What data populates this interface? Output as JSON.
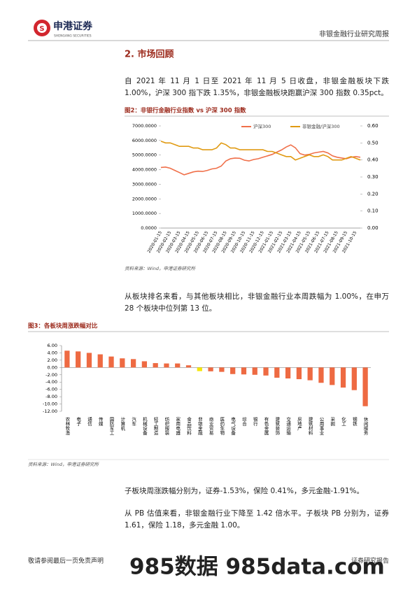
{
  "header": {
    "company": "申港证券",
    "company_en": "SHENGANG SECURITIES",
    "report_type": "非银金融行业研究周报"
  },
  "section_title": "2. 市场回顾",
  "paragraphs": [
    "自 2021 年 11 月 1 日至 2021 年 11 月 5 日收盘，非银金融板块下跌 1.00%，沪深 300 指下跌 1.35%，非银金融板块跑赢沪深 300 指数 0.35pct。",
    "从板块排名来看，与其他板块相比，非银金融行业本周跌幅为 1.00%，在申万 28 个板块中位列第 13 位。",
    "子板块周涨跌幅分别为，证券-1.53%，保险 0.41%，多元金融-1.91%。",
    "从 PB 估值来看，非银金融行业下降至 1.42 倍水平。子板块 PB 分别为，证券 1.61，保险 1.18，多元金融 1.00。"
  ],
  "sources": [
    "资料来源：Wind，申港证券研究所",
    "资料来源：Wind，申港证券研究所"
  ],
  "chart_data": [
    {
      "type": "line",
      "title": "图2：非银行金融行业指数 vs 沪深 300 指数",
      "categories": [
        "2020-01-15",
        null,
        "2020-02-15",
        null,
        "2020-03-15",
        null,
        "2020-04-15",
        null,
        "2020-05-15",
        null,
        "2020-06-15",
        null,
        "2020-07-15",
        null,
        "2020-08-15",
        null,
        "2020-09-15",
        null,
        "2020-10-15",
        null,
        "2020-11-15",
        null,
        "2020-12-15",
        null,
        "2021-01-15",
        null,
        "2021-02-15",
        null,
        "2021-03-15",
        null,
        "2021-04-15",
        null,
        "2021-05-15",
        null,
        "2021-06-15",
        null,
        "2021-07-15",
        null,
        "2021-08-15",
        null,
        "2021-09-15",
        null,
        "2021-10-15",
        null
      ],
      "series": [
        {
          "name": "沪深300",
          "color": "#f0704a",
          "values": [
            4150,
            4180,
            4100,
            3950,
            3800,
            3650,
            3750,
            3850,
            3900,
            3880,
            3950,
            4050,
            4100,
            4250,
            4600,
            4750,
            4800,
            4780,
            4650,
            4600,
            4700,
            4750,
            4850,
            4950,
            5050,
            5200,
            5350,
            5550,
            5700,
            5500,
            5100,
            5000,
            5050,
            5150,
            5200,
            5250,
            5150,
            4950,
            4850,
            4800,
            4750,
            4850,
            4900,
            4850
          ]
        },
        {
          "name": "非银金融/沪深300",
          "color": "#e09a12",
          "axis": "y2",
          "values": [
            0.51,
            0.5,
            0.5,
            0.49,
            0.48,
            0.48,
            0.48,
            0.47,
            0.47,
            0.46,
            0.46,
            0.46,
            0.47,
            0.5,
            0.49,
            0.47,
            0.47,
            0.46,
            0.46,
            0.46,
            0.46,
            0.46,
            0.46,
            0.45,
            0.45,
            0.44,
            0.43,
            0.42,
            0.42,
            0.4,
            0.41,
            0.42,
            0.43,
            0.42,
            0.42,
            0.43,
            0.42,
            0.4,
            0.4,
            0.4,
            0.41,
            0.42,
            0.41,
            0.4
          ]
        }
      ],
      "ylim": [
        0,
        7000
      ],
      "yticks": [
        {
          "value": 0,
          "label": "0.0000"
        },
        {
          "value": 1000,
          "label": "1000.0000"
        },
        {
          "value": 2000,
          "label": "2000.0000"
        },
        {
          "value": 3000,
          "label": "3000.0000"
        },
        {
          "value": 4000,
          "label": "4000.0000"
        },
        {
          "value": 5000,
          "label": "5000.0000"
        },
        {
          "value": 6000,
          "label": "6000.0000"
        },
        {
          "value": 7000,
          "label": "7000.0000"
        }
      ],
      "y2lim": [
        0,
        0.6
      ],
      "y2ticks": [
        {
          "value": 0,
          "label": "0.00"
        },
        {
          "value": 0.1,
          "label": "0.10"
        },
        {
          "value": 0.2,
          "label": "0.20"
        },
        {
          "value": 0.3,
          "label": "0.30"
        },
        {
          "value": 0.4,
          "label": "0.40"
        },
        {
          "value": 0.5,
          "label": "0.50"
        },
        {
          "value": 0.6,
          "label": "0.60"
        }
      ],
      "legend": "top"
    },
    {
      "type": "bar",
      "title": "图3：各板块周涨跌幅对比",
      "categories": [
        "农林牧渔",
        "电子",
        "通信",
        "传媒",
        "国防军工",
        "计算机",
        "汽车",
        "机械设备",
        "轻工制造",
        "纺织服装",
        "家用电器",
        "食品饮料",
        "非银金融",
        "商业贸易",
        "医药生物",
        "电气设备",
        "综合",
        "银行",
        "有色金属",
        "建筑装饰",
        "交通运输",
        "房地产",
        "建筑材料",
        "公用事业",
        "采掘",
        "化工",
        "钢铁",
        "休闲服务"
      ],
      "values": [
        4.6,
        4.4,
        4.0,
        3.6,
        3.0,
        2.5,
        2.3,
        1.7,
        1.2,
        1.1,
        1.1,
        0.6,
        -1.0,
        -1.05,
        -1.2,
        -1.8,
        -1.9,
        -2.0,
        -2.2,
        -2.8,
        -3.0,
        -3.2,
        -3.5,
        -4.2,
        -4.8,
        -5.5,
        -6.2,
        -10.6
      ],
      "colors": [
        "#ee6a42",
        "#ee6a42",
        "#ee6a42",
        "#ee6a42",
        "#ee6a42",
        "#ee6a42",
        "#ee6a42",
        "#ee6a42",
        "#ee6a42",
        "#ee6a42",
        "#ee6a42",
        "#ee6a42",
        "#f5e60a",
        "#ee6a42",
        "#ee6a42",
        "#ee6a42",
        "#ee6a42",
        "#ee6a42",
        "#ee6a42",
        "#ee6a42",
        "#ee6a42",
        "#ee6a42",
        "#ee6a42",
        "#ee6a42",
        "#ee6a42",
        "#ee6a42",
        "#ee6a42",
        "#ee6a42"
      ],
      "ylim": [
        -12,
        6
      ],
      "yticks": [
        {
          "value": -12,
          "label": "-12.00"
        },
        {
          "value": -10,
          "label": "-10.00"
        },
        {
          "value": -8,
          "label": "-8.00"
        },
        {
          "value": -6,
          "label": "-6.00"
        },
        {
          "value": -4,
          "label": "-4.00"
        },
        {
          "value": -2,
          "label": "-2.00"
        },
        {
          "value": 0,
          "label": "0.00"
        },
        {
          "value": 2,
          "label": "2.00"
        },
        {
          "value": 4,
          "label": "4.00"
        },
        {
          "value": 6,
          "label": "6.00"
        }
      ]
    }
  ],
  "footer": {
    "disclaimer": "敬请参阅最后一页免责声明",
    "report_label": "证券研究报告"
  },
  "watermark": "985数据 985data.com"
}
